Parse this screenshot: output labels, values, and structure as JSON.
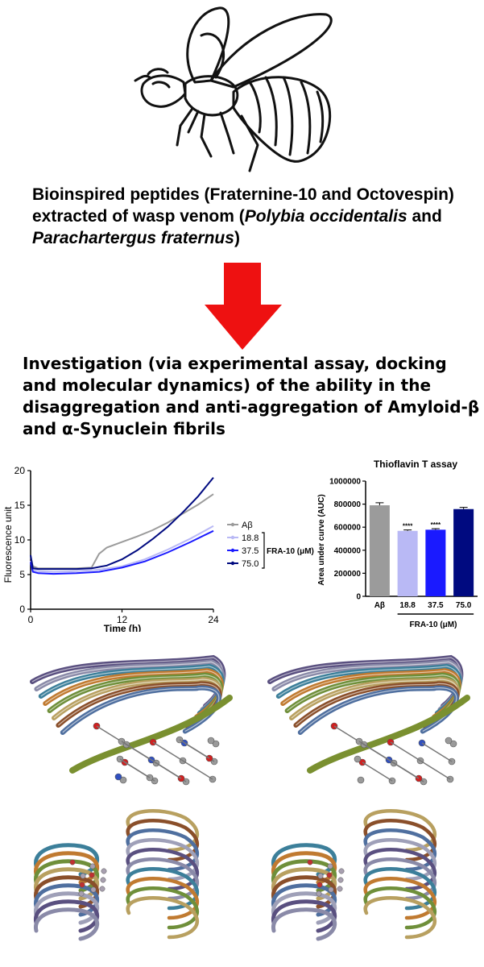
{
  "headline": {
    "part1": "Bioinspired peptides (Fraternine-10 and Octovespin) extracted of wasp venom (",
    "species1": "Polybia occidentalis",
    "part2": " and ",
    "species2": "Parachartergus fraternus",
    "part3": ")"
  },
  "investigation_text": "Investigation (via experimental assay, docking and molecular dynamics) of the ability in the disaggregation and anti-aggregation of Amyloid-β and α-Synuclein fibrils",
  "colors": {
    "arrow": "#ee1111",
    "abeta": "#9b9b9b",
    "c18_8": "#b9b9f5",
    "c37_5": "#1a1aff",
    "c75_0": "#000a80"
  },
  "icons": {
    "wasp": "wasp-icon",
    "arrow": "down-arrow-icon"
  },
  "chart_data": [
    {
      "type": "line",
      "title": "",
      "xlabel": "Time (h)",
      "ylabel": "Fluorescence unit",
      "xlim": [
        0,
        24
      ],
      "ylim": [
        0,
        20
      ],
      "xticks": [
        "0",
        "12",
        "24"
      ],
      "yticks": [
        "0",
        "5",
        "10",
        "15",
        "20"
      ],
      "legend_group_label": "FRA-10 (μM)",
      "series": [
        {
          "name": "Aβ",
          "x": [
            0,
            0.3,
            1,
            3,
            6,
            8,
            9,
            10,
            12,
            14,
            16,
            18,
            20,
            22,
            24
          ],
          "values": [
            7.6,
            6.2,
            5.9,
            5.9,
            5.9,
            6.0,
            8.0,
            8.9,
            9.7,
            10.5,
            11.4,
            12.5,
            13.8,
            15.1,
            16.6
          ]
        },
        {
          "name": "18.8",
          "x": [
            0,
            0.3,
            1,
            3,
            6,
            9,
            12,
            15,
            18,
            21,
            24
          ],
          "values": [
            7.0,
            5.6,
            5.5,
            5.4,
            5.5,
            5.7,
            6.2,
            7.2,
            8.6,
            10.2,
            12.0
          ]
        },
        {
          "name": "37.5",
          "x": [
            0,
            0.3,
            1,
            3,
            6,
            9,
            12,
            15,
            18,
            21,
            24
          ],
          "values": [
            6.8,
            5.4,
            5.2,
            5.1,
            5.2,
            5.4,
            6.0,
            6.9,
            8.2,
            9.7,
            11.3
          ]
        },
        {
          "name": "75.0",
          "x": [
            0,
            0.3,
            1,
            3,
            6,
            8,
            10,
            12,
            14,
            16,
            18,
            20,
            22,
            24
          ],
          "values": [
            7.8,
            5.9,
            5.8,
            5.8,
            5.8,
            5.9,
            6.3,
            7.2,
            8.5,
            10.1,
            11.9,
            14.0,
            16.3,
            19.0
          ]
        }
      ]
    },
    {
      "type": "bar",
      "title": "Thioflavin T assay",
      "xlabel": "",
      "ylabel": "Area under curve (AUC)",
      "ylim": [
        0,
        1000000
      ],
      "yticks": [
        "0",
        "200000",
        "400000",
        "600000",
        "800000",
        "1000000"
      ],
      "categories": [
        "Aβ",
        "18.8",
        "37.5",
        "75.0"
      ],
      "values": [
        790000,
        568000,
        578000,
        757000
      ],
      "errors": [
        22000,
        8000,
        9000,
        15000
      ],
      "significance": [
        "",
        "****",
        "****",
        ""
      ],
      "group_label": "FRA-10 (μM)"
    }
  ]
}
